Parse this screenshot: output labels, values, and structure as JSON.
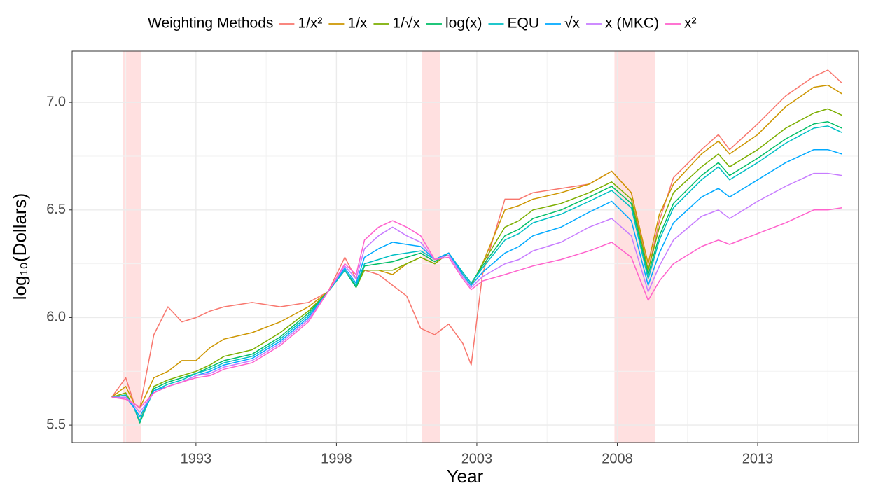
{
  "chart_data": {
    "type": "line",
    "x_label": "Year",
    "y_label": "log₁₀(Dollars)",
    "legend_title": "Weighting Methods",
    "legend": "top",
    "xlim": [
      1988.59,
      2016.59
    ],
    "ylim": [
      5.419,
      7.238
    ],
    "xticks": [
      1993,
      1998,
      2003,
      2008,
      2013
    ],
    "x_minor_ticks": [
      1990.5,
      1995.5,
      2000.5,
      2005.5,
      2010.5,
      2015.5
    ],
    "yticks": [
      {
        "value": 5.5,
        "label": "5.5"
      },
      {
        "value": 6,
        "label": "6.0"
      },
      {
        "value": 6.5,
        "label": "6.5"
      },
      {
        "value": 7,
        "label": "7.0"
      }
    ],
    "y_minor_ticks": [
      5.75,
      6.25,
      6.75
    ],
    "grid": true,
    "shaded_color": "#ffe0e0",
    "shaded_regions": [
      {
        "start": 1990.4,
        "end": 1991.05
      },
      {
        "start": 2001.05,
        "end": 2001.7
      },
      {
        "start": 2007.9,
        "end": 2009.35
      }
    ],
    "x": [
      1990.0,
      1990.5,
      1990.8,
      1991.0,
      1991.5,
      1992.0,
      1992.5,
      1993.0,
      1993.5,
      1994.0,
      1995.0,
      1996.0,
      1997.0,
      1997.7,
      1998.3,
      1998.7,
      1999.0,
      1999.5,
      2000.0,
      2000.5,
      2001.0,
      2001.5,
      2002.0,
      2002.5,
      2002.8,
      2003.2,
      2004.0,
      2004.5,
      2005.0,
      2006.0,
      2007.0,
      2007.8,
      2008.5,
      2009.1,
      2009.5,
      2010.0,
      2011.0,
      2011.6,
      2012.0,
      2013.0,
      2014.0,
      2015.0,
      2015.5,
      2016.0
    ],
    "series": [
      {
        "name": "1/x²",
        "color": "#F8766D",
        "values": [
          5.63,
          5.72,
          5.6,
          5.58,
          5.92,
          6.05,
          5.98,
          6.0,
          6.03,
          6.05,
          6.07,
          6.05,
          6.07,
          6.12,
          6.28,
          6.18,
          6.22,
          6.2,
          6.15,
          6.1,
          5.95,
          5.92,
          5.97,
          5.88,
          5.78,
          6.2,
          6.55,
          6.55,
          6.58,
          6.6,
          6.62,
          6.68,
          6.58,
          6.22,
          6.45,
          6.65,
          6.78,
          6.85,
          6.78,
          6.9,
          7.03,
          7.12,
          7.15,
          7.09
        ]
      },
      {
        "name": "1/x",
        "color": "#CD9600",
        "values": [
          5.63,
          5.68,
          5.6,
          5.58,
          5.72,
          5.75,
          5.8,
          5.8,
          5.86,
          5.9,
          5.93,
          5.98,
          6.05,
          6.12,
          6.22,
          6.15,
          6.22,
          6.22,
          6.2,
          6.25,
          6.28,
          6.25,
          6.3,
          6.2,
          6.15,
          6.25,
          6.5,
          6.52,
          6.55,
          6.58,
          6.62,
          6.68,
          6.58,
          6.25,
          6.48,
          6.62,
          6.76,
          6.82,
          6.76,
          6.85,
          6.98,
          7.07,
          7.08,
          7.04
        ]
      },
      {
        "name": "1/√x",
        "color": "#7CAE00",
        "values": [
          5.63,
          5.65,
          5.58,
          5.52,
          5.68,
          5.71,
          5.73,
          5.75,
          5.78,
          5.82,
          5.85,
          5.93,
          6.03,
          6.12,
          6.22,
          6.14,
          6.22,
          6.22,
          6.22,
          6.25,
          6.28,
          6.25,
          6.3,
          6.2,
          6.15,
          6.25,
          6.42,
          6.45,
          6.5,
          6.53,
          6.58,
          6.63,
          6.55,
          6.22,
          6.42,
          6.58,
          6.7,
          6.76,
          6.7,
          6.78,
          6.88,
          6.95,
          6.97,
          6.94
        ]
      },
      {
        "name": "log(x)",
        "color": "#00BE67",
        "values": [
          5.63,
          5.64,
          5.58,
          5.51,
          5.67,
          5.7,
          5.72,
          5.74,
          5.77,
          5.8,
          5.83,
          5.91,
          6.02,
          6.12,
          6.22,
          6.14,
          6.24,
          6.25,
          6.26,
          6.28,
          6.3,
          6.26,
          6.3,
          6.21,
          6.16,
          6.24,
          6.38,
          6.41,
          6.46,
          6.5,
          6.56,
          6.61,
          6.53,
          6.2,
          6.38,
          6.53,
          6.66,
          6.72,
          6.66,
          6.74,
          6.83,
          6.9,
          6.91,
          6.88
        ]
      },
      {
        "name": "EQU",
        "color": "#00BFC4",
        "values": [
          5.63,
          5.64,
          5.58,
          5.52,
          5.66,
          5.69,
          5.71,
          5.74,
          5.76,
          5.79,
          5.82,
          5.9,
          6.01,
          6.12,
          6.22,
          6.15,
          6.25,
          6.27,
          6.29,
          6.3,
          6.31,
          6.27,
          6.3,
          6.21,
          6.16,
          6.23,
          6.36,
          6.39,
          6.44,
          6.48,
          6.54,
          6.59,
          6.51,
          6.18,
          6.36,
          6.51,
          6.64,
          6.7,
          6.64,
          6.72,
          6.81,
          6.88,
          6.89,
          6.86
        ]
      },
      {
        "name": "√x",
        "color": "#00A9FF",
        "values": [
          5.63,
          5.63,
          5.58,
          5.54,
          5.66,
          5.68,
          5.7,
          5.73,
          5.75,
          5.78,
          5.81,
          5.89,
          6.0,
          6.12,
          6.23,
          6.16,
          6.28,
          6.32,
          6.35,
          6.34,
          6.33,
          6.27,
          6.3,
          6.2,
          6.15,
          6.21,
          6.3,
          6.33,
          6.38,
          6.42,
          6.49,
          6.54,
          6.45,
          6.15,
          6.3,
          6.44,
          6.56,
          6.6,
          6.56,
          6.64,
          6.72,
          6.78,
          6.78,
          6.76
        ]
      },
      {
        "name": "x (MKC)",
        "color": "#C77CFF",
        "values": [
          5.63,
          5.63,
          5.59,
          5.56,
          5.65,
          5.68,
          5.7,
          5.73,
          5.74,
          5.77,
          5.8,
          5.88,
          5.99,
          6.12,
          6.24,
          6.18,
          6.32,
          6.38,
          6.42,
          6.38,
          6.35,
          6.27,
          6.29,
          6.19,
          6.14,
          6.19,
          6.25,
          6.27,
          6.31,
          6.35,
          6.42,
          6.46,
          6.38,
          6.12,
          6.24,
          6.36,
          6.47,
          6.5,
          6.46,
          6.54,
          6.61,
          6.67,
          6.67,
          6.66
        ]
      },
      {
        "name": "x²",
        "color": "#FF61CC",
        "values": [
          5.63,
          5.62,
          5.6,
          5.58,
          5.65,
          5.68,
          5.7,
          5.72,
          5.73,
          5.76,
          5.79,
          5.87,
          5.98,
          6.12,
          6.25,
          6.2,
          6.36,
          6.42,
          6.45,
          6.42,
          6.38,
          6.27,
          6.28,
          6.18,
          6.13,
          6.17,
          6.2,
          6.22,
          6.24,
          6.27,
          6.31,
          6.35,
          6.28,
          6.08,
          6.17,
          6.25,
          6.33,
          6.36,
          6.34,
          6.39,
          6.44,
          6.5,
          6.5,
          6.51
        ]
      }
    ]
  }
}
